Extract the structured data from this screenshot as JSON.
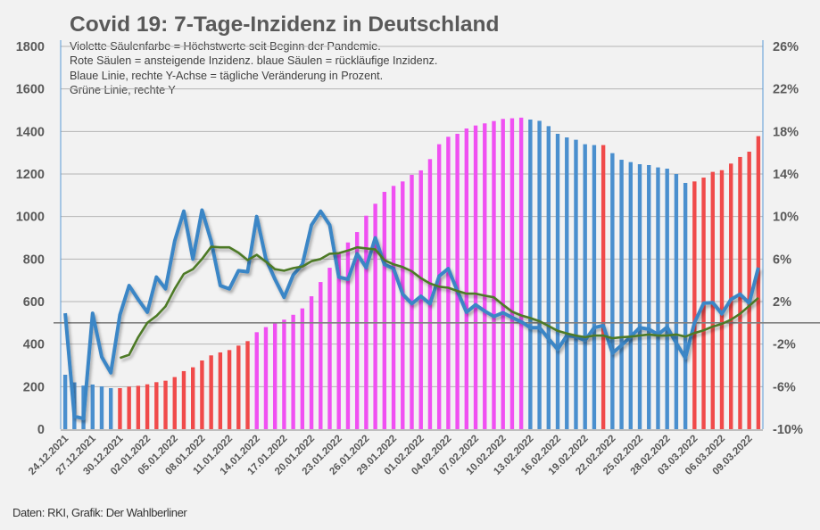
{
  "chart_data": {
    "type": "bar",
    "title": "Covid 19: 7-Tage-Inzidenz in Deutschland",
    "notes": [
      "Violette Säulenfarbe = Höchstwerte seit Beginn der Pandemie.",
      "Rote Säulen = ansteigende Inzidenz. blaue Säulen = rückläufige Inzidenz.",
      "Blaue Linie, rechte Y-Achse = tägliche Veränderung in Prozent.",
      "Grüne Linie, rechte Y"
    ],
    "source": "Daten: RKI, Grafik: Der Wahlberliner",
    "ylim_left": [
      0,
      1800
    ],
    "ylim_right": [
      -10,
      26
    ],
    "left_ticks": [
      "0",
      "200",
      "400",
      "600",
      "800",
      "1000",
      "1200",
      "1400",
      "1600",
      "1800"
    ],
    "right_ticks": [
      "-10%",
      "-6%",
      "-2%",
      "2%",
      "6%",
      "10%",
      "14%",
      "18%",
      "22%",
      "26%"
    ],
    "x_tick_labels": [
      "24.12.2021",
      "27.12.2021",
      "30.12.2021",
      "02.01.2022",
      "05.01.2022",
      "08.01.2022",
      "11.01.2022",
      "14.01.2022",
      "17.01.2022",
      "20.01.2022",
      "23.01.2022",
      "26.01.2022",
      "29.01.2022",
      "01.02.2022",
      "04.02.2022",
      "07.02.2022",
      "10.02.2022",
      "13.02.2022",
      "16.02.2022",
      "19.02.2022",
      "22.02.2022",
      "25.02.2022",
      "28.02.2022",
      "03.03.2022",
      "06.03.2022",
      "09.03.2022"
    ],
    "colors": {
      "blue": "#4a8fce",
      "red": "#f04a4a",
      "violet": "#f050f2",
      "blue_line": "#3b86c6",
      "green_line": "#4d7a28",
      "zero_line": "#7f7f7f"
    },
    "bars": {
      "values": [
        256,
        220,
        205,
        210,
        201,
        193,
        193,
        200,
        204,
        211,
        221,
        228,
        245,
        273,
        291,
        323,
        347,
        361,
        372,
        393,
        414,
        456,
        480,
        500,
        515,
        538,
        568,
        625,
        692,
        759,
        829,
        878,
        927,
        1004,
        1060,
        1116,
        1144,
        1165,
        1196,
        1217,
        1270,
        1340,
        1375,
        1389,
        1414,
        1428,
        1438,
        1449,
        1459,
        1462,
        1465,
        1456,
        1450,
        1425,
        1389,
        1372,
        1361,
        1340,
        1336,
        1336,
        1298,
        1267,
        1256,
        1246,
        1242,
        1231,
        1225,
        1200,
        1158,
        1165,
        1183,
        1210,
        1218,
        1249,
        1280,
        1305,
        1378
      ],
      "color_class": [
        "blue",
        "blue",
        "blue",
        "blue",
        "blue",
        "blue",
        "red",
        "red",
        "red",
        "red",
        "red",
        "red",
        "red",
        "red",
        "red",
        "red",
        "red",
        "red",
        "red",
        "red",
        "red",
        "violet",
        "violet",
        "violet",
        "violet",
        "violet",
        "violet",
        "violet",
        "violet",
        "violet",
        "violet",
        "violet",
        "violet",
        "violet",
        "violet",
        "violet",
        "violet",
        "violet",
        "violet",
        "violet",
        "violet",
        "violet",
        "violet",
        "violet",
        "violet",
        "violet",
        "violet",
        "violet",
        "violet",
        "violet",
        "violet",
        "blue",
        "blue",
        "blue",
        "blue",
        "blue",
        "blue",
        "blue",
        "blue",
        "red",
        "blue",
        "blue",
        "blue",
        "blue",
        "blue",
        "blue",
        "blue",
        "blue",
        "blue",
        "red",
        "red",
        "red",
        "red",
        "red",
        "red",
        "red",
        "red"
      ]
    },
    "series": [
      {
        "name": "Tägliche Veränderung (%)",
        "axis": "right",
        "start_index": 0,
        "values": [
          0.9,
          -8.8,
          -9.0,
          0.9,
          -3.2,
          -4.7,
          0.75,
          3.5,
          2.2,
          1.0,
          4.3,
          3.2,
          7.7,
          10.5,
          6.0,
          10.6,
          7.7,
          3.5,
          3.2,
          4.9,
          4.8,
          10.0,
          6.0,
          4.1,
          2.4,
          4.5,
          5.5,
          9.2,
          10.5,
          9.2,
          4.3,
          4.1,
          6.5,
          5.2,
          8.0,
          5.5,
          5.1,
          2.7,
          1.8,
          2.5,
          1.8,
          4.4,
          5.1,
          3.0,
          1.0,
          1.7,
          1.1,
          0.6,
          0.95,
          0.5,
          0.1,
          -0.45,
          -0.45,
          -1.5,
          -2.5,
          -1.2,
          -1.3,
          -1.65,
          -0.45,
          -0.25,
          -2.85,
          -2.1,
          -1.3,
          -0.45,
          -0.6,
          -1.1,
          -0.4,
          -1.9,
          -3.3,
          0.0,
          1.85,
          1.9,
          0.85,
          2.2,
          2.7,
          1.85,
          5.2
        ]
      },
      {
        "name": "Grüne Linie",
        "axis": "right",
        "start_index": 6,
        "values": [
          -3.3,
          -3.0,
          -1.35,
          0.0,
          0.65,
          1.55,
          3.2,
          4.6,
          5.05,
          6.0,
          7.15,
          7.1,
          7.1,
          6.6,
          5.9,
          6.4,
          5.75,
          5.05,
          4.9,
          5.15,
          5.3,
          5.8,
          6.0,
          6.5,
          6.55,
          6.8,
          7.1,
          7.0,
          6.9,
          5.9,
          5.5,
          5.25,
          4.85,
          4.2,
          3.7,
          3.4,
          3.3,
          3.0,
          2.75,
          2.75,
          2.55,
          2.4,
          1.7,
          1.05,
          0.7,
          0.45,
          0.15,
          -0.3,
          -0.75,
          -1.0,
          -1.2,
          -1.35,
          -1.2,
          -1.2,
          -1.45,
          -1.35,
          -1.3,
          -1.2,
          -1.1,
          -1.2,
          -1.2,
          -1.1,
          -1.3,
          -0.95,
          -0.7,
          -0.35,
          -0.1,
          0.3,
          0.85,
          1.6,
          2.35
        ]
      }
    ]
  }
}
